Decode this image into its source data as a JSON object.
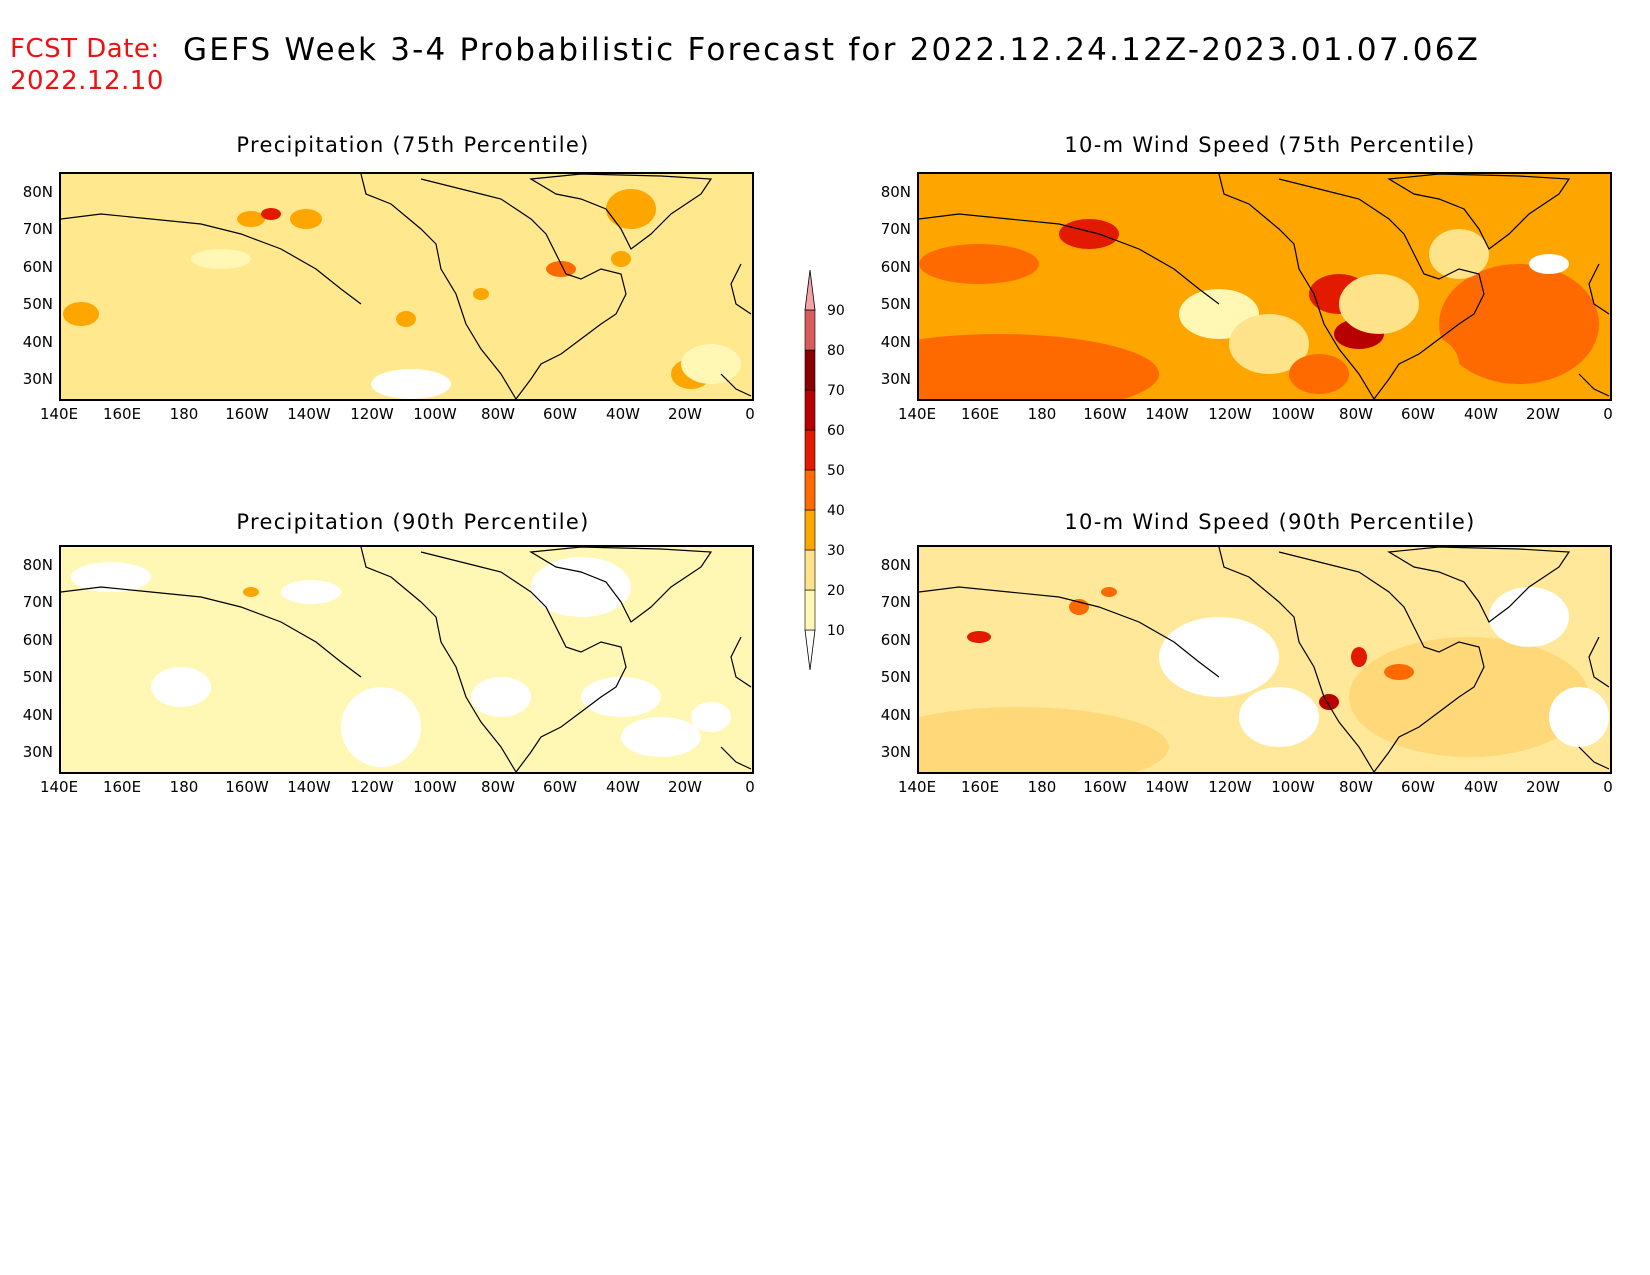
{
  "header": {
    "fcst_label": "FCST Date:",
    "fcst_date": "2022.12.10",
    "title": "GEFS Week 3-4 Probabilistic Forecast for 2022.12.24.12Z-2023.01.07.06Z"
  },
  "legend": {
    "levels": [
      "10",
      "20",
      "30",
      "40",
      "50",
      "60",
      "70",
      "80",
      "90"
    ],
    "colors": [
      "#ffffff",
      "#fff7b3",
      "#ffe38a",
      "#ffa500",
      "#ff6a00",
      "#e21a00",
      "#b80000",
      "#8a0000",
      "#d95c5c",
      "#f2a3a8",
      "#fce5e8"
    ]
  },
  "axes": {
    "y_ticks": [
      "80N",
      "70N",
      "60N",
      "50N",
      "40N",
      "30N"
    ],
    "x_ticks": [
      "140E",
      "160E",
      "180",
      "160W",
      "140W",
      "120W",
      "100W",
      "80W",
      "60W",
      "40W",
      "20W",
      "0"
    ]
  },
  "panels": [
    {
      "title": "Precipitation (75th Percentile)",
      "base_color": "#ffe88e",
      "variant": "precip75"
    },
    {
      "title": "10-m Wind Speed (75th Percentile)",
      "base_color": "#ffa500",
      "variant": "wind75"
    },
    {
      "title": "Precipitation (90th Percentile)",
      "base_color": "#fff7b3",
      "variant": "precip90"
    },
    {
      "title": "10-m Wind Speed (90th Percentile)",
      "base_color": "#ffe89a",
      "variant": "wind90"
    }
  ]
}
